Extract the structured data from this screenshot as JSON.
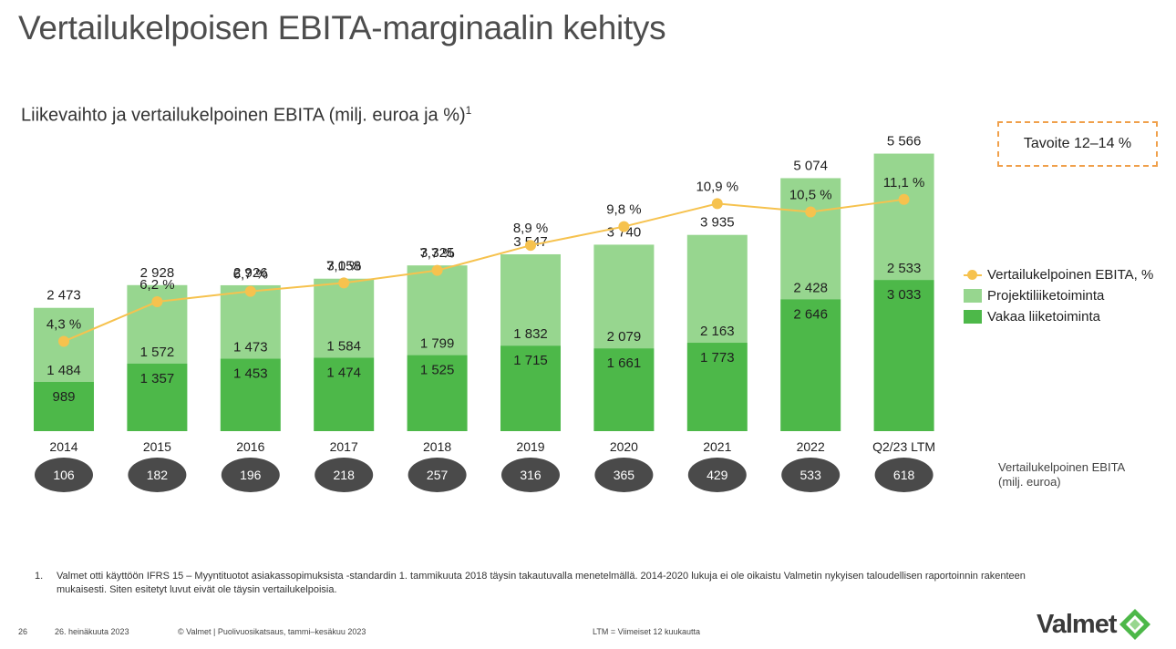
{
  "title": "Vertailukelpoisen EBITA-marginaalin kehitys",
  "subtitle": "Liikevaihto ja vertailukelpoinen EBITA (milj. euroa ja %)",
  "subtitle_sup": "1",
  "target_label": "Tavoite 12–14 %",
  "legend": {
    "line": "Vertailukelpoinen EBITA, %",
    "project": "Projektiliiketoiminta",
    "stable": "Vakaa liiketoiminta"
  },
  "ebita_note": {
    "line1": "Vertailukelpoinen EBITA",
    "line2": "(milj. euroa)"
  },
  "footnote": {
    "number": "1.",
    "text": "Valmet otti käyttöön IFRS 15 – Myyntituotot asiakassopimuksista -standardin 1. tammikuuta 2018 täysin takautuvalla menetelmällä. 2014-2020 lukuja ei ole oikaistu Valmetin nykyisen taloudellisen raportoinnin rakenteen mukaisesti. Siten esitetyt luvut eivät ole täysin vertailukelpoisia."
  },
  "footer": {
    "page": "26",
    "date": "26. heinäkuuta 2023",
    "source": "© Valmet   |  Puolivuosikatsaus, tammi–kesäkuu 2023",
    "ltm": "LTM = Viimeiset 12 kuukautta"
  },
  "logo_text": "Valmet",
  "colors": {
    "stable": "#4db849",
    "project": "#97d68f",
    "line": "#f6c24e",
    "ellipse": "#4a4a4a",
    "target_border": "#f0a04b"
  },
  "chart_data": {
    "type": "bar",
    "stacked": true,
    "categories": [
      "2014",
      "2015",
      "2016",
      "2017",
      "2018",
      "2019",
      "2020",
      "2021",
      "2022",
      "Q2/23 LTM"
    ],
    "series": [
      {
        "name": "Vakaa liiketoiminta",
        "values": [
          989,
          1357,
          1453,
          1474,
          1525,
          1715,
          1661,
          1773,
          2646,
          3033
        ]
      },
      {
        "name": "Projektiliiketoiminta",
        "values": [
          1484,
          1572,
          1473,
          1584,
          1799,
          1832,
          2079,
          2163,
          2428,
          2533
        ]
      }
    ],
    "totals": [
      2473,
      2928,
      2926,
      3058,
      3325,
      3547,
      3740,
      3935,
      5074,
      5566
    ],
    "total_labels": [
      "2 473",
      "2 928",
      "2 926",
      "3 058",
      "3 325",
      "3 547",
      "3 740",
      "3 935",
      "5 074",
      "5 566"
    ],
    "stable_labels": [
      "989",
      "1 357",
      "1 453",
      "1 474",
      "1 525",
      "1 715",
      "1 661",
      "1 773",
      "2 646",
      "3 033"
    ],
    "project_labels": [
      "1 484",
      "1 572",
      "1 473",
      "1 584",
      "1 799",
      "1 832",
      "2 079",
      "2 163",
      "2 428",
      "2 533"
    ],
    "margin_series": {
      "name": "Vertailukelpoinen EBITA, %",
      "values": [
        4.3,
        6.2,
        6.7,
        7.1,
        7.7,
        8.9,
        9.8,
        10.9,
        10.5,
        11.1
      ],
      "labels": [
        "4,3 %",
        "6,2 %",
        "6,7 %",
        "7,1 %",
        "7,7 %",
        "8,9 %",
        "9,8 %",
        "10,9 %",
        "10,5 %",
        "11,1 %"
      ]
    },
    "ebita_values": [
      106,
      182,
      196,
      218,
      257,
      316,
      365,
      429,
      533,
      618
    ],
    "ebita_labels": [
      "106",
      "182",
      "196",
      "218",
      "257",
      "316",
      "365",
      "429",
      "533",
      "618"
    ]
  }
}
